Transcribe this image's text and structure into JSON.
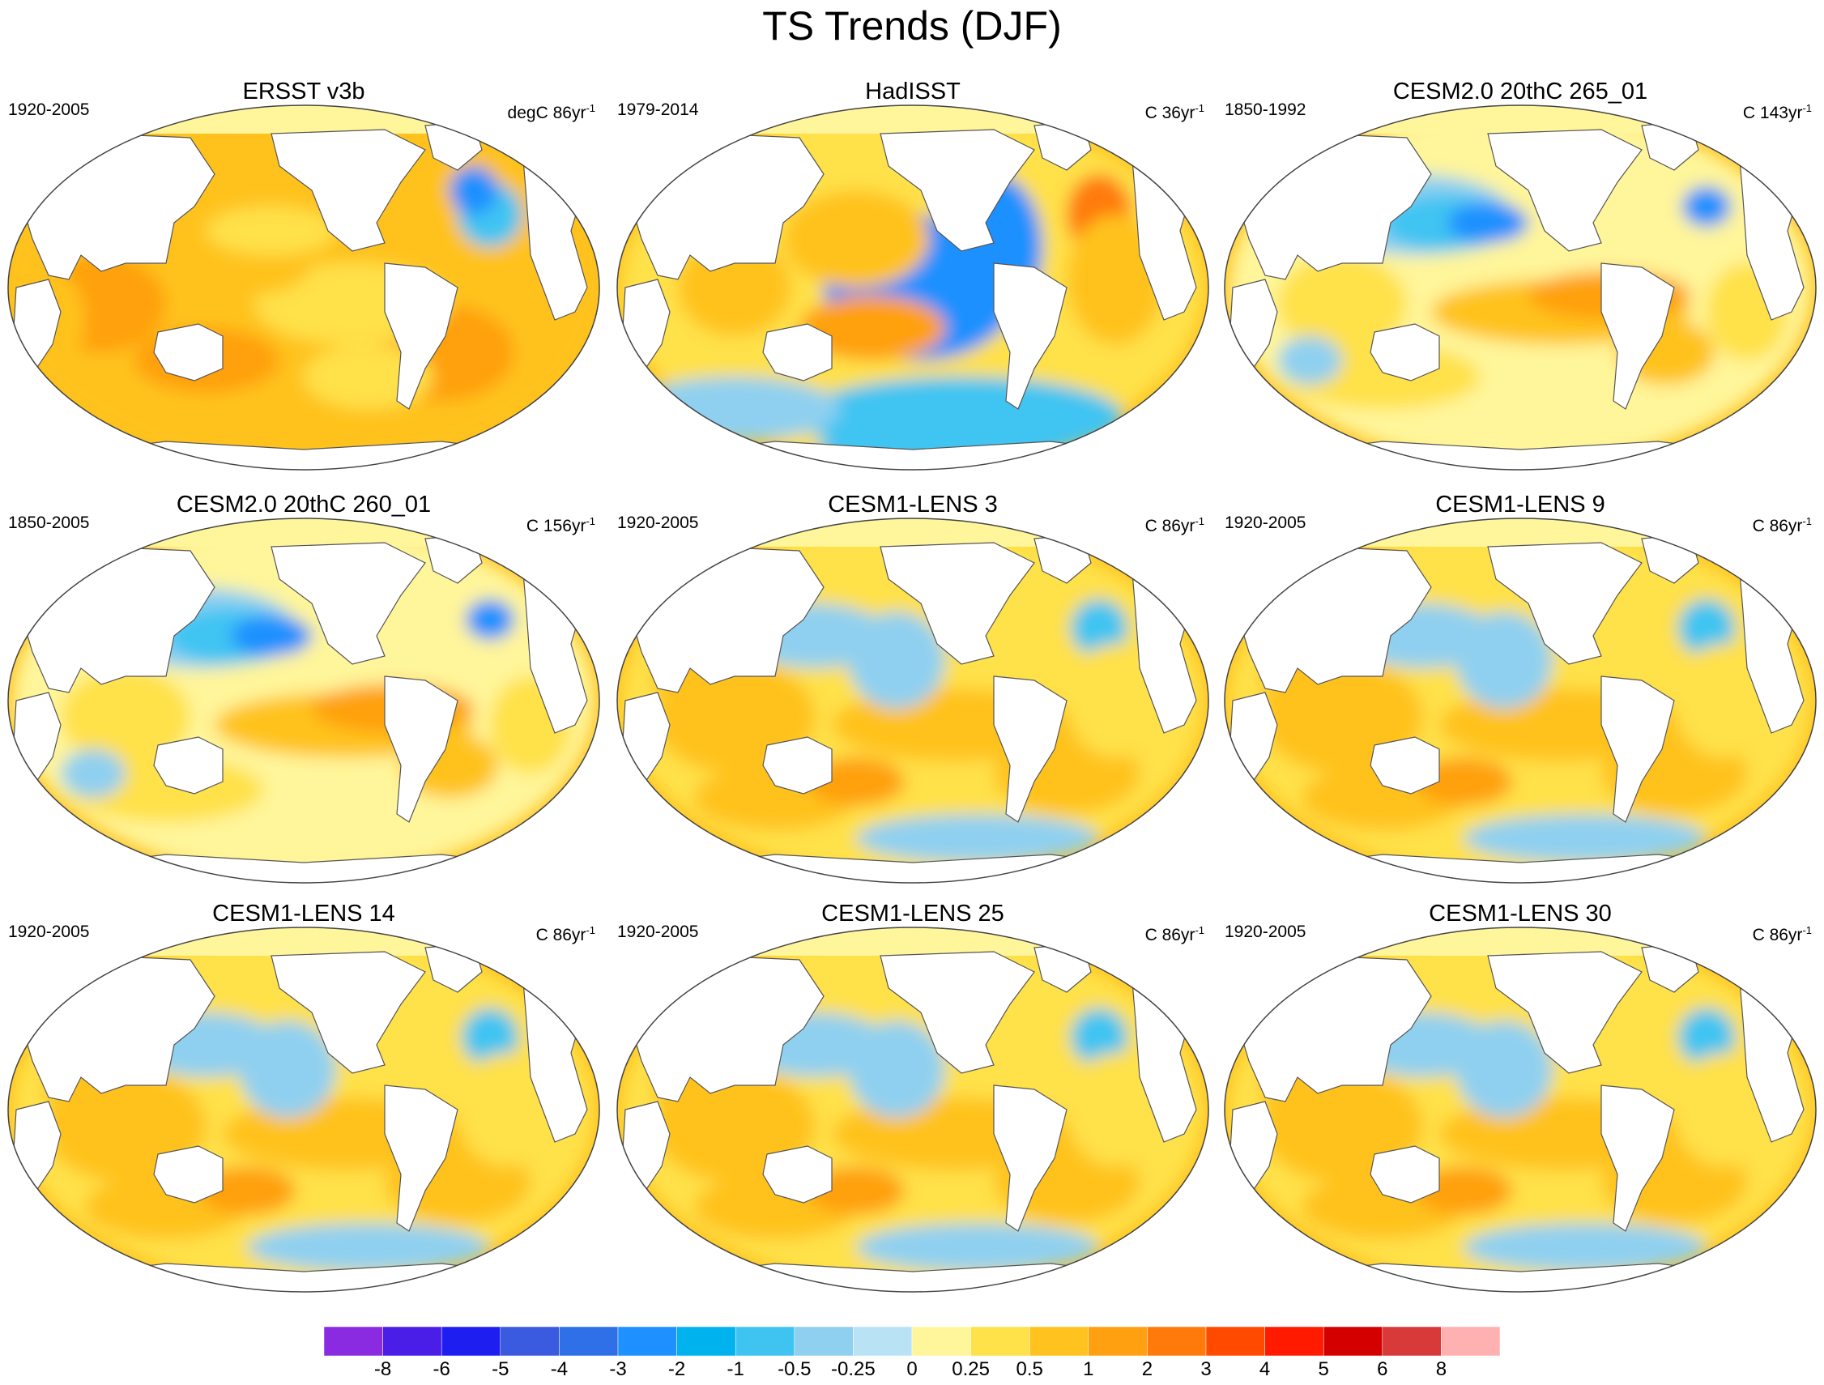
{
  "title": "TS Trends (DJF)",
  "panels": [
    {
      "title": "ERSST v3b",
      "period": "1920-2005",
      "units_prefix": "degC 86yr",
      "units_exp": "-1",
      "pattern": "warm"
    },
    {
      "title": "HadISST",
      "period": "1979-2014",
      "units_prefix": "C 36yr",
      "units_exp": "-1",
      "pattern": "lanina"
    },
    {
      "title": "CESM2.0 20thC 265_01",
      "period": "1850-1992",
      "units_prefix": "C 143yr",
      "units_exp": "-1",
      "pattern": "elnino"
    },
    {
      "title": "CESM2.0 20thC 260_01",
      "period": "1850-2005",
      "units_prefix": "C 156yr",
      "units_exp": "-1",
      "pattern": "elnino"
    },
    {
      "title": "CESM1-LENS 3",
      "period": "1920-2005",
      "units_prefix": "C 86yr",
      "units_exp": "-1",
      "pattern": "mixed"
    },
    {
      "title": "CESM1-LENS 9",
      "period": "1920-2005",
      "units_prefix": "C 86yr",
      "units_exp": "-1",
      "pattern": "mixed"
    },
    {
      "title": "CESM1-LENS 14",
      "period": "1920-2005",
      "units_prefix": "C 86yr",
      "units_exp": "-1",
      "pattern": "mixed"
    },
    {
      "title": "CESM1-LENS 25",
      "period": "1920-2005",
      "units_prefix": "C 86yr",
      "units_exp": "-1",
      "pattern": "mixed"
    },
    {
      "title": "CESM1-LENS 30",
      "period": "1920-2005",
      "units_prefix": "C 86yr",
      "units_exp": "-1",
      "pattern": "mixed"
    }
  ],
  "colorbar": {
    "colors": [
      "#8a2be2",
      "#4b1ee8",
      "#1e1ef0",
      "#3a5ae0",
      "#2f6fe8",
      "#1e90ff",
      "#00b2ee",
      "#3fc4f2",
      "#8fd0f0",
      "#b9e2f5",
      "#fff59a",
      "#ffe14a",
      "#ffc21e",
      "#ffa010",
      "#ff7a0a",
      "#ff4a00",
      "#ff1a00",
      "#d40000",
      "#d83a3a",
      "#ffb0b0"
    ],
    "labels": [
      "-8",
      "-6",
      "-5",
      "-4",
      "-3",
      "-2",
      "-1",
      "-0.5",
      "-0.25",
      "0",
      "0.25",
      "0.5",
      "1",
      "2",
      "3",
      "4",
      "5",
      "6",
      "8"
    ]
  },
  "colors": {
    "land": "#ffffff",
    "coastline": "#555555",
    "ocean_base": "#ffc21e"
  }
}
